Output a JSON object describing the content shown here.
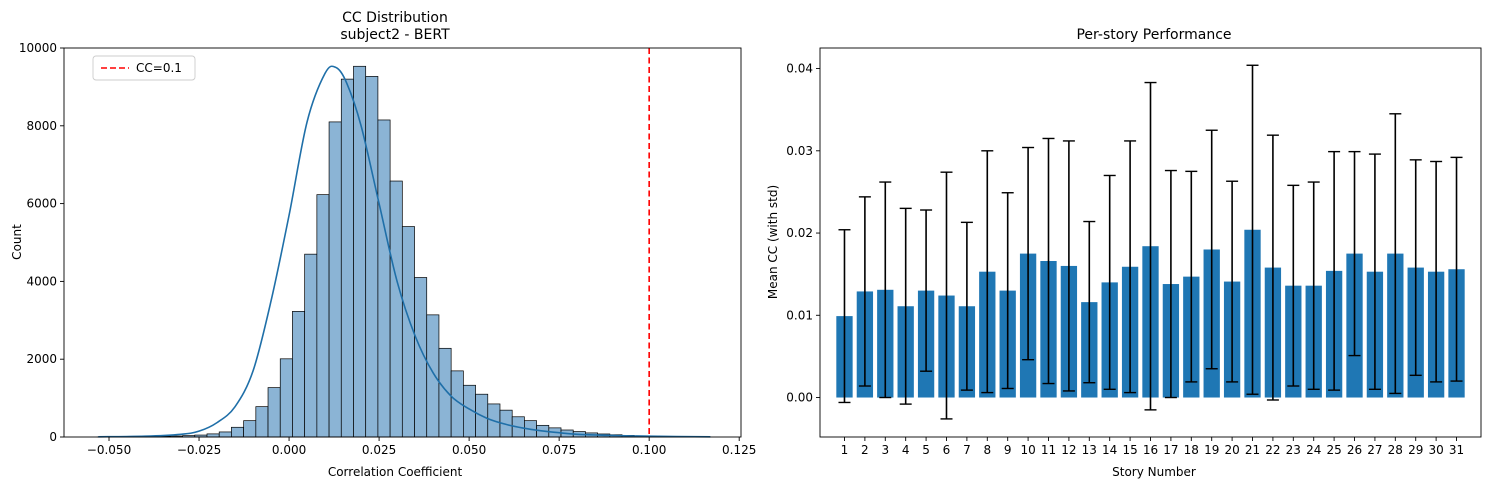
{
  "chart_data": [
    {
      "type": "histogram",
      "title": "CC Distribution",
      "subtitle": "subject2 - BERT",
      "xlabel": "Correlation Coefficient",
      "ylabel": "Count",
      "xlim": [
        -0.0625,
        0.1255
      ],
      "ylim": [
        0,
        10000
      ],
      "xticks": [
        -0.05,
        -0.025,
        0.0,
        0.025,
        0.05,
        0.075,
        0.1,
        0.125
      ],
      "xtick_labels": [
        "−0.050",
        "−0.025",
        "0.000",
        "0.025",
        "0.050",
        "0.075",
        "0.100",
        "0.125"
      ],
      "yticks": [
        0,
        2000,
        4000,
        6000,
        8000,
        10000
      ],
      "ytick_labels": [
        "0",
        "2000",
        "4000",
        "6000",
        "8000",
        "10000"
      ],
      "bins": {
        "edges_start": -0.0533,
        "bin_width": 0.00339,
        "counts": [
          2,
          3,
          5,
          8,
          12,
          18,
          25,
          35,
          50,
          80,
          130,
          250,
          420,
          780,
          1270,
          2010,
          3230,
          4700,
          6230,
          8100,
          9200,
          9530,
          9270,
          8150,
          6580,
          5410,
          4100,
          3140,
          2280,
          1700,
          1330,
          1100,
          850,
          690,
          520,
          420,
          300,
          235,
          180,
          140,
          105,
          78,
          58,
          42,
          30,
          20,
          12,
          7,
          4,
          2
        ]
      },
      "kde": {
        "x": [
          -0.053,
          -0.04,
          -0.03,
          -0.025,
          -0.02,
          -0.015,
          -0.01,
          -0.005,
          0.0,
          0.005,
          0.01,
          0.013,
          0.016,
          0.02,
          0.025,
          0.03,
          0.035,
          0.04,
          0.045,
          0.05,
          0.055,
          0.06,
          0.065,
          0.07,
          0.075,
          0.08,
          0.09,
          0.1,
          0.117
        ],
        "y": [
          5,
          20,
          70,
          150,
          370,
          780,
          1700,
          3500,
          5700,
          8100,
          9350,
          9500,
          9100,
          8000,
          6000,
          4000,
          2600,
          1650,
          1050,
          720,
          480,
          330,
          230,
          160,
          110,
          70,
          40,
          20,
          5
        ]
      },
      "reference_line": {
        "x": 0.1,
        "label": "CC=0.1",
        "color": "#ff0000",
        "style": "dashed"
      },
      "legend_position": "top-left",
      "bar_color": "#8bb4d5",
      "kde_color": "#1f6fa8",
      "grid": false
    },
    {
      "type": "bar",
      "title": "Per-story Performance",
      "xlabel": "Story Number",
      "ylabel": "Mean CC (with std)",
      "ylim": [
        -0.0048,
        0.0425
      ],
      "yticks": [
        0.0,
        0.01,
        0.02,
        0.03,
        0.04
      ],
      "ytick_labels": [
        "0.00",
        "0.01",
        "0.02",
        "0.03",
        "0.04"
      ],
      "categories": [
        "1",
        "2",
        "3",
        "4",
        "5",
        "6",
        "7",
        "8",
        "9",
        "10",
        "11",
        "12",
        "13",
        "14",
        "15",
        "16",
        "17",
        "18",
        "19",
        "20",
        "21",
        "22",
        "23",
        "24",
        "25",
        "26",
        "27",
        "28",
        "29",
        "30",
        "31"
      ],
      "values": [
        0.0099,
        0.0129,
        0.0131,
        0.0111,
        0.013,
        0.0124,
        0.0111,
        0.0153,
        0.013,
        0.0175,
        0.0166,
        0.016,
        0.0116,
        0.014,
        0.0159,
        0.0184,
        0.0138,
        0.0147,
        0.018,
        0.0141,
        0.0204,
        0.0158,
        0.0136,
        0.0136,
        0.0154,
        0.0175,
        0.0153,
        0.0175,
        0.0158,
        0.0153,
        0.0156
      ],
      "errors": [
        0.0105,
        0.0115,
        0.0131,
        0.0119,
        0.0098,
        0.015,
        0.0102,
        0.0147,
        0.0119,
        0.0129,
        0.0149,
        0.0152,
        0.0098,
        0.013,
        0.0153,
        0.0199,
        0.0138,
        0.0128,
        0.0145,
        0.0122,
        0.02,
        0.0161,
        0.0122,
        0.0126,
        0.0145,
        0.0124,
        0.0143,
        0.017,
        0.0131,
        0.0134,
        0.0136
      ],
      "bar_color": "#1f77b4",
      "grid": false
    }
  ]
}
